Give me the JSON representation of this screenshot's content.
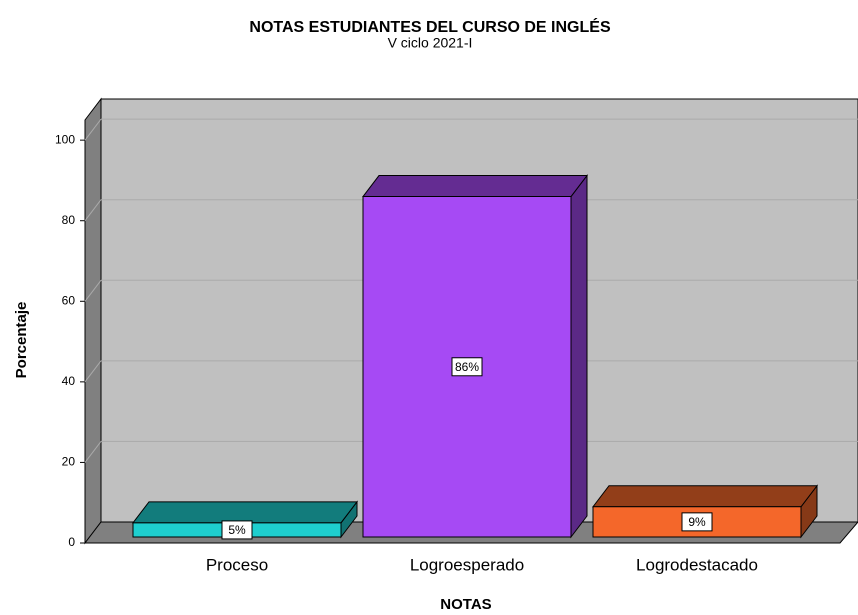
{
  "chart_data": {
    "type": "bar3d",
    "title": "NOTAS ESTUDIANTES DEL CURSO DE INGLÉS",
    "subtitle": "V ciclo 2021-I",
    "x_label": "NOTAS",
    "y_label": "Porcentaje",
    "categories": [
      "Proceso",
      "Logroesperado",
      "Logrodestacado"
    ],
    "values": [
      5,
      86,
      9
    ],
    "value_labels": [
      "5%",
      "86%",
      "9%"
    ],
    "colors": [
      "#1ecfcf",
      "#a64af4",
      "#f4672a"
    ],
    "ylim": [
      0,
      105
    ],
    "yticks": [
      0,
      20,
      40,
      60,
      80,
      100
    ],
    "grid": true
  }
}
